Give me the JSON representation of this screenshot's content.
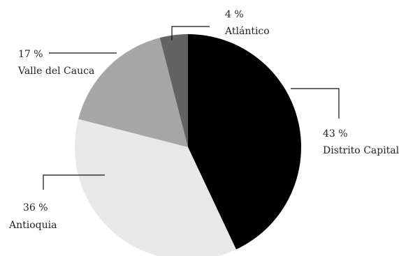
{
  "chart_data": {
    "type": "pie",
    "title": "",
    "slices": [
      {
        "label": "Distrito Capital",
        "value": 43,
        "display": "43 %",
        "color": "#000000"
      },
      {
        "label": "Antioquia",
        "value": 36,
        "display": "36 %",
        "color": "#e8e8e8"
      },
      {
        "label": "Valle del Cauca",
        "value": 17,
        "display": "17 %",
        "color": "#a6a6a6"
      },
      {
        "label": "Atlántico",
        "value": 4,
        "display": "4 %",
        "color": "#636363"
      }
    ],
    "start": "12 o'clock",
    "direction": "clockwise",
    "legend": "none",
    "data_labels": "outside with leader lines"
  }
}
